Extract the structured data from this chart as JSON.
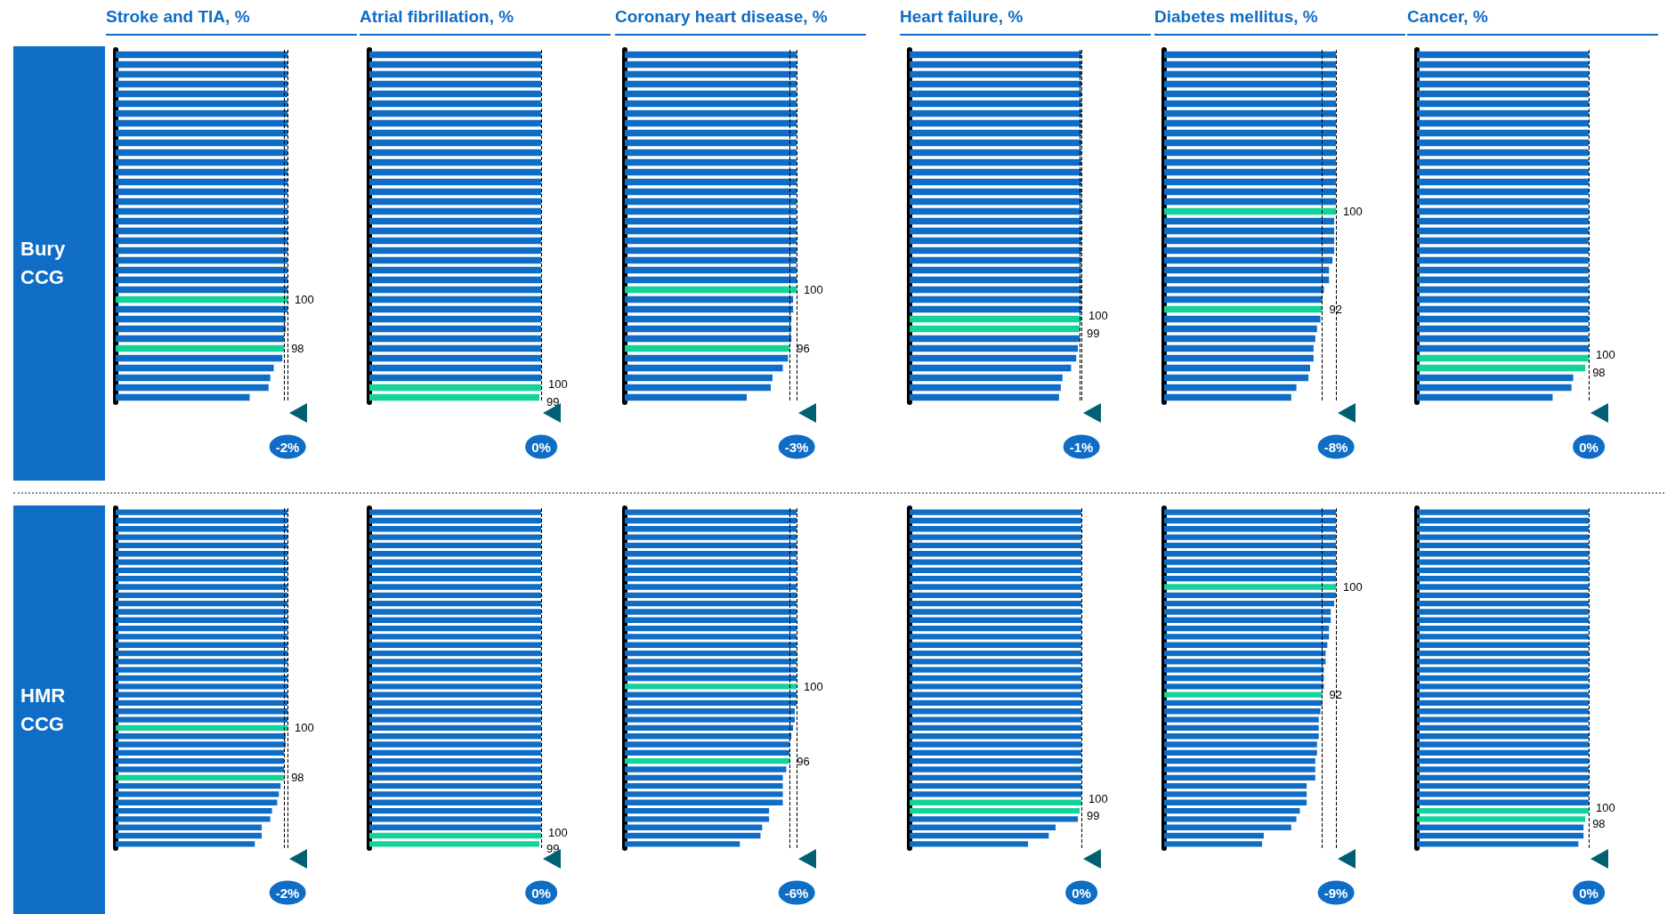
{
  "chart_data": [
    {
      "type": "bar",
      "orientation": "horizontal",
      "title": "Stroke and TIA, %",
      "ylabel": "Bury CCG",
      "categories": [
        null,
        null,
        null,
        null,
        null,
        null,
        null,
        null,
        null,
        null,
        null,
        null,
        null,
        null,
        null,
        null,
        null,
        null,
        null,
        null,
        null,
        null,
        null,
        null,
        null,
        null,
        null,
        null,
        null,
        null,
        null,
        null,
        null,
        null,
        null,
        null
      ],
      "values": [
        100,
        100,
        100,
        100,
        100,
        100,
        100,
        100,
        100,
        100,
        100,
        100,
        100,
        100,
        100,
        100,
        100,
        100,
        100,
        100,
        100,
        100,
        100,
        100,
        100,
        100,
        100,
        99,
        99,
        98,
        98,
        97,
        92,
        90,
        89,
        78
      ],
      "colors": [
        "#0f6dc6",
        "#0f6dc6",
        "#0f6dc6",
        "#0f6dc6",
        "#0f6dc6",
        "#0f6dc6",
        "#0f6dc6",
        "#0f6dc6",
        "#0f6dc6",
        "#0f6dc6",
        "#0f6dc6",
        "#0f6dc6",
        "#0f6dc6",
        "#0f6dc6",
        "#0f6dc6",
        "#0f6dc6",
        "#0f6dc6",
        "#0f6dc6",
        "#0f6dc6",
        "#0f6dc6",
        "#0f6dc6",
        "#0f6dc6",
        "#0f6dc6",
        "#0f6dc6",
        "#0f6dc6",
        "#13d39a",
        "#0f6dc6",
        "#0f6dc6",
        "#0f6dc6",
        "#0f6dc6",
        "#13d39a",
        "#0f6dc6",
        "#0f6dc6",
        "#0f6dc6",
        "#0f6dc6",
        "#0f6dc6"
      ],
      "value_labels": [
        null,
        null,
        null,
        null,
        null,
        null,
        null,
        null,
        null,
        null,
        null,
        null,
        null,
        null,
        null,
        null,
        null,
        null,
        null,
        null,
        null,
        null,
        null,
        null,
        null,
        "100",
        null,
        null,
        null,
        null,
        "98",
        null,
        null,
        null,
        null,
        null
      ],
      "ref_lines": [
        {
          "axis": "x",
          "value": 100,
          "color": "#000000",
          "line_style": "dashed"
        },
        {
          "axis": "x",
          "value": 98,
          "color": "#000000",
          "line_style": "dashed"
        }
      ],
      "annotations": [
        "-2%"
      ]
    },
    {
      "type": "bar",
      "orientation": "horizontal",
      "title": "Atrial fibrillation, %",
      "categories": [
        null,
        null,
        null,
        null,
        null,
        null,
        null,
        null,
        null,
        null,
        null,
        null,
        null,
        null,
        null,
        null,
        null,
        null,
        null,
        null,
        null,
        null,
        null,
        null,
        null,
        null,
        null,
        null,
        null,
        null,
        null,
        null,
        null,
        null,
        null,
        null
      ],
      "values": [
        100,
        100,
        100,
        100,
        100,
        100,
        100,
        100,
        100,
        100,
        100,
        100,
        100,
        100,
        100,
        100,
        100,
        100,
        100,
        100,
        100,
        100,
        100,
        100,
        100,
        100,
        100,
        100,
        100,
        100,
        100,
        100,
        100,
        100,
        100,
        99
      ],
      "colors": [
        "#0f6dc6",
        "#0f6dc6",
        "#0f6dc6",
        "#0f6dc6",
        "#0f6dc6",
        "#0f6dc6",
        "#0f6dc6",
        "#0f6dc6",
        "#0f6dc6",
        "#0f6dc6",
        "#0f6dc6",
        "#0f6dc6",
        "#0f6dc6",
        "#0f6dc6",
        "#0f6dc6",
        "#0f6dc6",
        "#0f6dc6",
        "#0f6dc6",
        "#0f6dc6",
        "#0f6dc6",
        "#0f6dc6",
        "#0f6dc6",
        "#0f6dc6",
        "#0f6dc6",
        "#0f6dc6",
        "#0f6dc6",
        "#0f6dc6",
        "#0f6dc6",
        "#0f6dc6",
        "#0f6dc6",
        "#0f6dc6",
        "#0f6dc6",
        "#0f6dc6",
        "#0f6dc6",
        "#13d39a",
        "#13d39a"
      ],
      "value_labels": [
        null,
        null,
        null,
        null,
        null,
        null,
        null,
        null,
        null,
        null,
        null,
        null,
        null,
        null,
        null,
        null,
        null,
        null,
        null,
        null,
        null,
        null,
        null,
        null,
        null,
        null,
        null,
        null,
        null,
        null,
        null,
        null,
        null,
        null,
        "100",
        "99"
      ],
      "ref_lines": [
        {
          "axis": "x",
          "value": 100,
          "color": "#000000",
          "line_style": "dashed"
        }
      ],
      "annotations": [
        "0%"
      ]
    },
    {
      "type": "bar",
      "orientation": "horizontal",
      "title": "Coronary heart disease, %",
      "categories": [
        null,
        null,
        null,
        null,
        null,
        null,
        null,
        null,
        null,
        null,
        null,
        null,
        null,
        null,
        null,
        null,
        null,
        null,
        null,
        null,
        null,
        null,
        null,
        null,
        null,
        null,
        null,
        null,
        null,
        null,
        null,
        null,
        null,
        null,
        null,
        null
      ],
      "values": [
        100,
        100,
        100,
        100,
        100,
        100,
        100,
        100,
        100,
        100,
        100,
        100,
        100,
        100,
        100,
        100,
        100,
        100,
        100,
        100,
        100,
        100,
        100,
        100,
        100,
        98,
        98,
        97,
        97,
        97,
        96,
        95,
        92,
        86,
        85,
        71
      ],
      "colors": [
        "#0f6dc6",
        "#0f6dc6",
        "#0f6dc6",
        "#0f6dc6",
        "#0f6dc6",
        "#0f6dc6",
        "#0f6dc6",
        "#0f6dc6",
        "#0f6dc6",
        "#0f6dc6",
        "#0f6dc6",
        "#0f6dc6",
        "#0f6dc6",
        "#0f6dc6",
        "#0f6dc6",
        "#0f6dc6",
        "#0f6dc6",
        "#0f6dc6",
        "#0f6dc6",
        "#0f6dc6",
        "#0f6dc6",
        "#0f6dc6",
        "#0f6dc6",
        "#0f6dc6",
        "#13d39a",
        "#0f6dc6",
        "#0f6dc6",
        "#0f6dc6",
        "#0f6dc6",
        "#0f6dc6",
        "#13d39a",
        "#0f6dc6",
        "#0f6dc6",
        "#0f6dc6",
        "#0f6dc6",
        "#0f6dc6"
      ],
      "value_labels": [
        null,
        null,
        null,
        null,
        null,
        null,
        null,
        null,
        null,
        null,
        null,
        null,
        null,
        null,
        null,
        null,
        null,
        null,
        null,
        null,
        null,
        null,
        null,
        null,
        "100",
        null,
        null,
        null,
        null,
        null,
        "96",
        null,
        null,
        null,
        null,
        null
      ],
      "ref_lines": [
        {
          "axis": "x",
          "value": 100,
          "color": "#000000",
          "line_style": "dashed"
        },
        {
          "axis": "x",
          "value": 96,
          "color": "#000000",
          "line_style": "dashed"
        }
      ],
      "annotations": [
        "-3%"
      ]
    },
    {
      "type": "bar",
      "orientation": "horizontal",
      "title": "Heart failure, %",
      "categories": [
        null,
        null,
        null,
        null,
        null,
        null,
        null,
        null,
        null,
        null,
        null,
        null,
        null,
        null,
        null,
        null,
        null,
        null,
        null,
        null,
        null,
        null,
        null,
        null,
        null,
        null,
        null,
        null,
        null,
        null,
        null,
        null,
        null,
        null,
        null,
        null
      ],
      "values": [
        100,
        100,
        100,
        100,
        100,
        100,
        100,
        100,
        100,
        100,
        100,
        100,
        100,
        100,
        100,
        100,
        100,
        100,
        100,
        100,
        100,
        100,
        100,
        100,
        100,
        100,
        100,
        100,
        99,
        99,
        98,
        97,
        94,
        89,
        88,
        87
      ],
      "colors": [
        "#0f6dc6",
        "#0f6dc6",
        "#0f6dc6",
        "#0f6dc6",
        "#0f6dc6",
        "#0f6dc6",
        "#0f6dc6",
        "#0f6dc6",
        "#0f6dc6",
        "#0f6dc6",
        "#0f6dc6",
        "#0f6dc6",
        "#0f6dc6",
        "#0f6dc6",
        "#0f6dc6",
        "#0f6dc6",
        "#0f6dc6",
        "#0f6dc6",
        "#0f6dc6",
        "#0f6dc6",
        "#0f6dc6",
        "#0f6dc6",
        "#0f6dc6",
        "#0f6dc6",
        "#0f6dc6",
        "#0f6dc6",
        "#0f6dc6",
        "#13d39a",
        "#13d39a",
        "#0f6dc6",
        "#0f6dc6",
        "#0f6dc6",
        "#0f6dc6",
        "#0f6dc6",
        "#0f6dc6",
        "#0f6dc6"
      ],
      "value_labels": [
        null,
        null,
        null,
        null,
        null,
        null,
        null,
        null,
        null,
        null,
        null,
        null,
        null,
        null,
        null,
        null,
        null,
        null,
        null,
        null,
        null,
        null,
        null,
        null,
        null,
        null,
        null,
        "100",
        "99",
        null,
        null,
        null,
        null,
        null,
        null,
        null
      ],
      "ref_lines": [
        {
          "axis": "x",
          "value": 100,
          "color": "#000000",
          "line_style": "dashed"
        },
        {
          "axis": "x",
          "value": 99,
          "color": "#000000",
          "line_style": "dashed"
        }
      ],
      "annotations": [
        "-1%"
      ]
    },
    {
      "type": "bar",
      "orientation": "horizontal",
      "title": "Diabetes mellitus, %",
      "categories": [
        null,
        null,
        null,
        null,
        null,
        null,
        null,
        null,
        null,
        null,
        null,
        null,
        null,
        null,
        null,
        null,
        null,
        null,
        null,
        null,
        null,
        null,
        null,
        null,
        null,
        null,
        null,
        null,
        null,
        null,
        null,
        null,
        null,
        null,
        null,
        null
      ],
      "values": [
        100,
        100,
        100,
        100,
        100,
        100,
        100,
        100,
        100,
        100,
        100,
        100,
        100,
        100,
        100,
        100,
        100,
        99,
        99,
        99,
        99,
        98,
        96,
        96,
        93,
        92,
        92,
        91,
        89,
        88,
        87,
        87,
        85,
        84,
        77,
        74
      ],
      "colors": [
        "#0f6dc6",
        "#0f6dc6",
        "#0f6dc6",
        "#0f6dc6",
        "#0f6dc6",
        "#0f6dc6",
        "#0f6dc6",
        "#0f6dc6",
        "#0f6dc6",
        "#0f6dc6",
        "#0f6dc6",
        "#0f6dc6",
        "#0f6dc6",
        "#0f6dc6",
        "#0f6dc6",
        "#0f6dc6",
        "#13d39a",
        "#0f6dc6",
        "#0f6dc6",
        "#0f6dc6",
        "#0f6dc6",
        "#0f6dc6",
        "#0f6dc6",
        "#0f6dc6",
        "#0f6dc6",
        "#0f6dc6",
        "#13d39a",
        "#0f6dc6",
        "#0f6dc6",
        "#0f6dc6",
        "#0f6dc6",
        "#0f6dc6",
        "#0f6dc6",
        "#0f6dc6",
        "#0f6dc6",
        "#0f6dc6"
      ],
      "value_labels": [
        null,
        null,
        null,
        null,
        null,
        null,
        null,
        null,
        null,
        null,
        null,
        null,
        null,
        null,
        null,
        null,
        "100",
        null,
        null,
        null,
        null,
        null,
        null,
        null,
        null,
        null,
        "92",
        null,
        null,
        null,
        null,
        null,
        null,
        null,
        null,
        null
      ],
      "ref_lines": [
        {
          "axis": "x",
          "value": 100,
          "color": "#000000",
          "line_style": "dashed"
        },
        {
          "axis": "x",
          "value": 92,
          "color": "#000000",
          "line_style": "dashed"
        }
      ],
      "annotations": [
        "-8%"
      ]
    },
    {
      "type": "bar",
      "orientation": "horizontal",
      "title": "Cancer, %",
      "categories": [
        null,
        null,
        null,
        null,
        null,
        null,
        null,
        null,
        null,
        null,
        null,
        null,
        null,
        null,
        null,
        null,
        null,
        null,
        null,
        null,
        null,
        null,
        null,
        null,
        null,
        null,
        null,
        null,
        null,
        null,
        null,
        null,
        null,
        null,
        null,
        null
      ],
      "values": [
        100,
        100,
        100,
        100,
        100,
        100,
        100,
        100,
        100,
        100,
        100,
        100,
        100,
        100,
        100,
        100,
        100,
        100,
        100,
        100,
        100,
        100,
        100,
        100,
        100,
        100,
        100,
        100,
        100,
        100,
        100,
        100,
        98,
        91,
        90,
        79
      ],
      "colors": [
        "#0f6dc6",
        "#0f6dc6",
        "#0f6dc6",
        "#0f6dc6",
        "#0f6dc6",
        "#0f6dc6",
        "#0f6dc6",
        "#0f6dc6",
        "#0f6dc6",
        "#0f6dc6",
        "#0f6dc6",
        "#0f6dc6",
        "#0f6dc6",
        "#0f6dc6",
        "#0f6dc6",
        "#0f6dc6",
        "#0f6dc6",
        "#0f6dc6",
        "#0f6dc6",
        "#0f6dc6",
        "#0f6dc6",
        "#0f6dc6",
        "#0f6dc6",
        "#0f6dc6",
        "#0f6dc6",
        "#0f6dc6",
        "#0f6dc6",
        "#0f6dc6",
        "#0f6dc6",
        "#0f6dc6",
        "#0f6dc6",
        "#13d39a",
        "#13d39a",
        "#0f6dc6",
        "#0f6dc6",
        "#0f6dc6"
      ],
      "value_labels": [
        null,
        null,
        null,
        null,
        null,
        null,
        null,
        null,
        null,
        null,
        null,
        null,
        null,
        null,
        null,
        null,
        null,
        null,
        null,
        null,
        null,
        null,
        null,
        null,
        null,
        null,
        null,
        null,
        null,
        null,
        null,
        "100",
        "98",
        null,
        null,
        null
      ],
      "ref_lines": [
        {
          "axis": "x",
          "value": 100,
          "color": "#000000",
          "line_style": "dashed"
        }
      ],
      "annotations": [
        "0%"
      ]
    },
    {
      "type": "bar",
      "orientation": "horizontal",
      "ylabel": "HMR CCG",
      "categories": [
        null,
        null,
        null,
        null,
        null,
        null,
        null,
        null,
        null,
        null,
        null,
        null,
        null,
        null,
        null,
        null,
        null,
        null,
        null,
        null,
        null,
        null,
        null,
        null,
        null,
        null,
        null,
        null,
        null,
        null,
        null,
        null,
        null,
        null,
        null,
        null,
        null,
        null,
        null,
        null,
        null
      ],
      "values": [
        100,
        100,
        100,
        100,
        100,
        100,
        100,
        100,
        100,
        100,
        100,
        100,
        100,
        100,
        100,
        100,
        100,
        100,
        100,
        100,
        100,
        100,
        100,
        100,
        100,
        100,
        100,
        99,
        99,
        98,
        98,
        98,
        98,
        96,
        95,
        94,
        91,
        90,
        85,
        85,
        81
      ],
      "colors": [
        "#0f6dc6",
        "#0f6dc6",
        "#0f6dc6",
        "#0f6dc6",
        "#0f6dc6",
        "#0f6dc6",
        "#0f6dc6",
        "#0f6dc6",
        "#0f6dc6",
        "#0f6dc6",
        "#0f6dc6",
        "#0f6dc6",
        "#0f6dc6",
        "#0f6dc6",
        "#0f6dc6",
        "#0f6dc6",
        "#0f6dc6",
        "#0f6dc6",
        "#0f6dc6",
        "#0f6dc6",
        "#0f6dc6",
        "#0f6dc6",
        "#0f6dc6",
        "#0f6dc6",
        "#0f6dc6",
        "#0f6dc6",
        "#13d39a",
        "#0f6dc6",
        "#0f6dc6",
        "#0f6dc6",
        "#0f6dc6",
        "#0f6dc6",
        "#13d39a",
        "#0f6dc6",
        "#0f6dc6",
        "#0f6dc6",
        "#0f6dc6",
        "#0f6dc6",
        "#0f6dc6",
        "#0f6dc6",
        "#0f6dc6"
      ],
      "value_labels": [
        null,
        null,
        null,
        null,
        null,
        null,
        null,
        null,
        null,
        null,
        null,
        null,
        null,
        null,
        null,
        null,
        null,
        null,
        null,
        null,
        null,
        null,
        null,
        null,
        null,
        null,
        "100",
        null,
        null,
        null,
        null,
        null,
        "98",
        null,
        null,
        null,
        null,
        null,
        null,
        null,
        null
      ],
      "ref_lines": [
        {
          "axis": "x",
          "value": 100,
          "color": "#000000",
          "line_style": "dashed"
        },
        {
          "axis": "x",
          "value": 98,
          "color": "#000000",
          "line_style": "dashed"
        }
      ],
      "annotations": [
        "-2%"
      ]
    },
    {
      "type": "bar",
      "orientation": "horizontal",
      "categories": [
        null,
        null,
        null,
        null,
        null,
        null,
        null,
        null,
        null,
        null,
        null,
        null,
        null,
        null,
        null,
        null,
        null,
        null,
        null,
        null,
        null,
        null,
        null,
        null,
        null,
        null,
        null,
        null,
        null,
        null,
        null,
        null,
        null,
        null,
        null,
        null,
        null,
        null,
        null,
        null,
        null
      ],
      "values": [
        100,
        100,
        100,
        100,
        100,
        100,
        100,
        100,
        100,
        100,
        100,
        100,
        100,
        100,
        100,
        100,
        100,
        100,
        100,
        100,
        100,
        100,
        100,
        100,
        100,
        100,
        100,
        100,
        100,
        100,
        100,
        100,
        100,
        100,
        100,
        100,
        100,
        100,
        100,
        100,
        99
      ],
      "colors": [
        "#0f6dc6",
        "#0f6dc6",
        "#0f6dc6",
        "#0f6dc6",
        "#0f6dc6",
        "#0f6dc6",
        "#0f6dc6",
        "#0f6dc6",
        "#0f6dc6",
        "#0f6dc6",
        "#0f6dc6",
        "#0f6dc6",
        "#0f6dc6",
        "#0f6dc6",
        "#0f6dc6",
        "#0f6dc6",
        "#0f6dc6",
        "#0f6dc6",
        "#0f6dc6",
        "#0f6dc6",
        "#0f6dc6",
        "#0f6dc6",
        "#0f6dc6",
        "#0f6dc6",
        "#0f6dc6",
        "#0f6dc6",
        "#0f6dc6",
        "#0f6dc6",
        "#0f6dc6",
        "#0f6dc6",
        "#0f6dc6",
        "#0f6dc6",
        "#0f6dc6",
        "#0f6dc6",
        "#0f6dc6",
        "#0f6dc6",
        "#0f6dc6",
        "#0f6dc6",
        "#0f6dc6",
        "#13d39a",
        "#13d39a"
      ],
      "value_labels": [
        null,
        null,
        null,
        null,
        null,
        null,
        null,
        null,
        null,
        null,
        null,
        null,
        null,
        null,
        null,
        null,
        null,
        null,
        null,
        null,
        null,
        null,
        null,
        null,
        null,
        null,
        null,
        null,
        null,
        null,
        null,
        null,
        null,
        null,
        null,
        null,
        null,
        null,
        null,
        "100",
        "99"
      ],
      "ref_lines": [
        {
          "axis": "x",
          "value": 100,
          "color": "#000000",
          "line_style": "dashed"
        }
      ],
      "annotations": [
        "0%"
      ]
    },
    {
      "type": "bar",
      "orientation": "horizontal",
      "categories": [
        null,
        null,
        null,
        null,
        null,
        null,
        null,
        null,
        null,
        null,
        null,
        null,
        null,
        null,
        null,
        null,
        null,
        null,
        null,
        null,
        null,
        null,
        null,
        null,
        null,
        null,
        null,
        null,
        null,
        null,
        null,
        null,
        null,
        null,
        null,
        null,
        null,
        null,
        null,
        null,
        null
      ],
      "values": [
        100,
        100,
        100,
        100,
        100,
        100,
        100,
        100,
        100,
        100,
        100,
        100,
        100,
        100,
        100,
        100,
        100,
        100,
        100,
        100,
        100,
        100,
        100,
        100,
        99,
        99,
        98,
        97,
        96,
        96,
        96,
        94,
        92,
        92,
        92,
        92,
        84,
        84,
        80,
        79,
        67
      ],
      "colors": [
        "#0f6dc6",
        "#0f6dc6",
        "#0f6dc6",
        "#0f6dc6",
        "#0f6dc6",
        "#0f6dc6",
        "#0f6dc6",
        "#0f6dc6",
        "#0f6dc6",
        "#0f6dc6",
        "#0f6dc6",
        "#0f6dc6",
        "#0f6dc6",
        "#0f6dc6",
        "#0f6dc6",
        "#0f6dc6",
        "#0f6dc6",
        "#0f6dc6",
        "#0f6dc6",
        "#0f6dc6",
        "#0f6dc6",
        "#13d39a",
        "#0f6dc6",
        "#0f6dc6",
        "#0f6dc6",
        "#0f6dc6",
        "#0f6dc6",
        "#0f6dc6",
        "#0f6dc6",
        "#0f6dc6",
        "#13d39a",
        "#0f6dc6",
        "#0f6dc6",
        "#0f6dc6",
        "#0f6dc6",
        "#0f6dc6",
        "#0f6dc6",
        "#0f6dc6",
        "#0f6dc6",
        "#0f6dc6",
        "#0f6dc6"
      ],
      "value_labels": [
        null,
        null,
        null,
        null,
        null,
        null,
        null,
        null,
        null,
        null,
        null,
        null,
        null,
        null,
        null,
        null,
        null,
        null,
        null,
        null,
        null,
        "100",
        null,
        null,
        null,
        null,
        null,
        null,
        null,
        null,
        "96",
        null,
        null,
        null,
        null,
        null,
        null,
        null,
        null,
        null,
        null
      ],
      "ref_lines": [
        {
          "axis": "x",
          "value": 100,
          "color": "#000000",
          "line_style": "dashed"
        },
        {
          "axis": "x",
          "value": 96,
          "color": "#000000",
          "line_style": "dashed"
        }
      ],
      "annotations": [
        "-6%"
      ]
    },
    {
      "type": "bar",
      "orientation": "horizontal",
      "categories": [
        null,
        null,
        null,
        null,
        null,
        null,
        null,
        null,
        null,
        null,
        null,
        null,
        null,
        null,
        null,
        null,
        null,
        null,
        null,
        null,
        null,
        null,
        null,
        null,
        null,
        null,
        null,
        null,
        null,
        null,
        null,
        null,
        null,
        null,
        null,
        null,
        null,
        null,
        null,
        null,
        null
      ],
      "values": [
        100,
        100,
        100,
        100,
        100,
        100,
        100,
        100,
        100,
        100,
        100,
        100,
        100,
        100,
        100,
        100,
        100,
        100,
        100,
        100,
        100,
        100,
        100,
        100,
        100,
        100,
        100,
        100,
        100,
        100,
        100,
        100,
        100,
        100,
        100,
        100,
        99,
        98,
        85,
        81,
        69
      ],
      "colors": [
        "#0f6dc6",
        "#0f6dc6",
        "#0f6dc6",
        "#0f6dc6",
        "#0f6dc6",
        "#0f6dc6",
        "#0f6dc6",
        "#0f6dc6",
        "#0f6dc6",
        "#0f6dc6",
        "#0f6dc6",
        "#0f6dc6",
        "#0f6dc6",
        "#0f6dc6",
        "#0f6dc6",
        "#0f6dc6",
        "#0f6dc6",
        "#0f6dc6",
        "#0f6dc6",
        "#0f6dc6",
        "#0f6dc6",
        "#0f6dc6",
        "#0f6dc6",
        "#0f6dc6",
        "#0f6dc6",
        "#0f6dc6",
        "#0f6dc6",
        "#0f6dc6",
        "#0f6dc6",
        "#0f6dc6",
        "#0f6dc6",
        "#0f6dc6",
        "#0f6dc6",
        "#0f6dc6",
        "#0f6dc6",
        "#13d39a",
        "#13d39a",
        "#0f6dc6",
        "#0f6dc6",
        "#0f6dc6",
        "#0f6dc6"
      ],
      "value_labels": [
        null,
        null,
        null,
        null,
        null,
        null,
        null,
        null,
        null,
        null,
        null,
        null,
        null,
        null,
        null,
        null,
        null,
        null,
        null,
        null,
        null,
        null,
        null,
        null,
        null,
        null,
        null,
        null,
        null,
        null,
        null,
        null,
        null,
        null,
        null,
        "100",
        "99",
        null,
        null,
        null,
        null
      ],
      "ref_lines": [
        {
          "axis": "x",
          "value": 100,
          "color": "#000000",
          "line_style": "dashed"
        }
      ],
      "annotations": [
        "0%"
      ]
    },
    {
      "type": "bar",
      "orientation": "horizontal",
      "categories": [
        null,
        null,
        null,
        null,
        null,
        null,
        null,
        null,
        null,
        null,
        null,
        null,
        null,
        null,
        null,
        null,
        null,
        null,
        null,
        null,
        null,
        null,
        null,
        null,
        null,
        null,
        null,
        null,
        null,
        null,
        null,
        null,
        null,
        null,
        null,
        null,
        null,
        null,
        null,
        null,
        null
      ],
      "values": [
        100,
        100,
        100,
        100,
        100,
        100,
        100,
        100,
        100,
        100,
        100,
        99,
        97,
        97,
        96,
        96,
        95,
        94,
        94,
        93,
        93,
        93,
        92,
        92,
        91,
        90,
        90,
        90,
        89,
        89,
        88,
        88,
        88,
        83,
        83,
        83,
        79,
        77,
        74,
        58,
        57
      ],
      "colors": [
        "#0f6dc6",
        "#0f6dc6",
        "#0f6dc6",
        "#0f6dc6",
        "#0f6dc6",
        "#0f6dc6",
        "#0f6dc6",
        "#0f6dc6",
        "#0f6dc6",
        "#13d39a",
        "#0f6dc6",
        "#0f6dc6",
        "#0f6dc6",
        "#0f6dc6",
        "#0f6dc6",
        "#0f6dc6",
        "#0f6dc6",
        "#0f6dc6",
        "#0f6dc6",
        "#0f6dc6",
        "#0f6dc6",
        "#0f6dc6",
        "#13d39a",
        "#0f6dc6",
        "#0f6dc6",
        "#0f6dc6",
        "#0f6dc6",
        "#0f6dc6",
        "#0f6dc6",
        "#0f6dc6",
        "#0f6dc6",
        "#0f6dc6",
        "#0f6dc6",
        "#0f6dc6",
        "#0f6dc6",
        "#0f6dc6",
        "#0f6dc6",
        "#0f6dc6",
        "#0f6dc6",
        "#0f6dc6",
        "#0f6dc6"
      ],
      "value_labels": [
        null,
        null,
        null,
        null,
        null,
        null,
        null,
        null,
        null,
        "100",
        null,
        null,
        null,
        null,
        null,
        null,
        null,
        null,
        null,
        null,
        null,
        null,
        "92",
        null,
        null,
        null,
        null,
        null,
        null,
        null,
        null,
        null,
        null,
        null,
        null,
        null,
        null,
        null,
        null,
        null,
        null
      ],
      "ref_lines": [
        {
          "axis": "x",
          "value": 100,
          "color": "#000000",
          "line_style": "dashed"
        },
        {
          "axis": "x",
          "value": 92,
          "color": "#000000",
          "line_style": "dashed"
        }
      ],
      "annotations": [
        "-9%"
      ]
    },
    {
      "type": "bar",
      "orientation": "horizontal",
      "categories": [
        null,
        null,
        null,
        null,
        null,
        null,
        null,
        null,
        null,
        null,
        null,
        null,
        null,
        null,
        null,
        null,
        null,
        null,
        null,
        null,
        null,
        null,
        null,
        null,
        null,
        null,
        null,
        null,
        null,
        null,
        null,
        null,
        null,
        null,
        null,
        null,
        null,
        null,
        null,
        null,
        null
      ],
      "values": [
        100,
        100,
        100,
        100,
        100,
        100,
        100,
        100,
        100,
        100,
        100,
        100,
        100,
        100,
        100,
        100,
        100,
        100,
        100,
        100,
        100,
        100,
        100,
        100,
        100,
        100,
        100,
        100,
        100,
        100,
        100,
        100,
        100,
        100,
        100,
        100,
        100,
        98,
        97,
        97,
        94
      ],
      "colors": [
        "#0f6dc6",
        "#0f6dc6",
        "#0f6dc6",
        "#0f6dc6",
        "#0f6dc6",
        "#0f6dc6",
        "#0f6dc6",
        "#0f6dc6",
        "#0f6dc6",
        "#0f6dc6",
        "#0f6dc6",
        "#0f6dc6",
        "#0f6dc6",
        "#0f6dc6",
        "#0f6dc6",
        "#0f6dc6",
        "#0f6dc6",
        "#0f6dc6",
        "#0f6dc6",
        "#0f6dc6",
        "#0f6dc6",
        "#0f6dc6",
        "#0f6dc6",
        "#0f6dc6",
        "#0f6dc6",
        "#0f6dc6",
        "#0f6dc6",
        "#0f6dc6",
        "#0f6dc6",
        "#0f6dc6",
        "#0f6dc6",
        "#0f6dc6",
        "#0f6dc6",
        "#0f6dc6",
        "#0f6dc6",
        "#0f6dc6",
        "#13d39a",
        "#13d39a",
        "#0f6dc6",
        "#0f6dc6",
        "#0f6dc6"
      ],
      "value_labels": [
        null,
        null,
        null,
        null,
        null,
        null,
        null,
        null,
        null,
        null,
        null,
        null,
        null,
        null,
        null,
        null,
        null,
        null,
        null,
        null,
        null,
        null,
        null,
        null,
        null,
        null,
        null,
        null,
        null,
        null,
        null,
        null,
        null,
        null,
        null,
        null,
        "100",
        "98",
        null,
        null,
        null
      ],
      "ref_lines": [
        {
          "axis": "x",
          "value": 100,
          "color": "#000000",
          "line_style": "dashed"
        }
      ],
      "annotations": [
        "0%"
      ]
    }
  ]
}
